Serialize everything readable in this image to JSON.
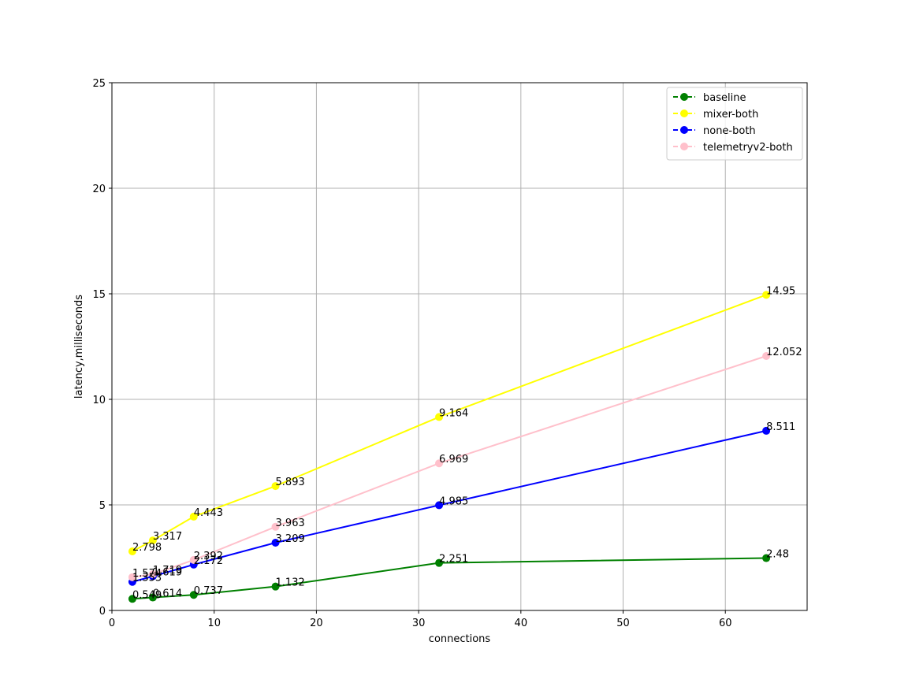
{
  "chart_data": {
    "type": "line",
    "title": "",
    "xlabel": "connections",
    "ylabel": "latency,milliseconds",
    "xlim": [
      0,
      68
    ],
    "ylim": [
      0,
      25
    ],
    "xticks": [
      0,
      10,
      20,
      30,
      40,
      50,
      60
    ],
    "yticks": [
      0,
      5,
      10,
      15,
      20,
      25
    ],
    "grid": true,
    "legend_position": "top-right",
    "x": [
      2,
      4,
      8,
      16,
      32,
      64
    ],
    "series": [
      {
        "name": "baseline",
        "color": "#008000",
        "values": [
          0.549,
          0.614,
          0.737,
          1.132,
          2.251,
          2.48
        ],
        "labels": [
          "0.549",
          "0.614",
          "0.737",
          "1.132",
          "2.251",
          "2.48"
        ]
      },
      {
        "name": "mixer-both",
        "color": "#ffff00",
        "values": [
          2.798,
          3.317,
          4.443,
          5.893,
          9.164,
          14.95
        ],
        "labels": [
          "2.798",
          "3.317",
          "4.443",
          "5.893",
          "9.164",
          "14.95"
        ]
      },
      {
        "name": "none-both",
        "color": "#0000ff",
        "values": [
          1.353,
          1.619,
          2.172,
          3.209,
          4.985,
          8.511
        ],
        "labels": [
          "1.353",
          "1.619",
          "2.172",
          "3.209",
          "4.985",
          "8.511"
        ]
      },
      {
        "name": "telemetryv2-both",
        "color": "#ffc0cb",
        "values": [
          1.574,
          1.719,
          2.392,
          3.963,
          6.969,
          12.052
        ],
        "labels": [
          "1.574",
          "1.719",
          "2.392",
          "3.963",
          "6.969",
          "12.052"
        ]
      }
    ]
  }
}
